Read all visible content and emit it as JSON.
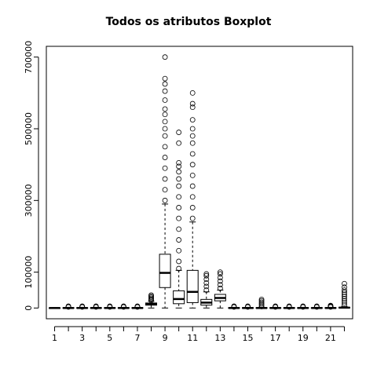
{
  "chart_data": {
    "type": "boxplot",
    "title": "Todos os atributos Boxplot",
    "xlabel": "",
    "ylabel": "",
    "ylim": [
      -30000,
      730000
    ],
    "y_ticks": [
      0,
      100000,
      300000,
      500000,
      700000
    ],
    "y_tick_labels": [
      "0",
      "100000",
      "300000",
      "500000",
      "700000"
    ],
    "x_tick_labels": [
      "1",
      "3",
      "5",
      "7",
      "9",
      "11",
      "13",
      "15",
      "17",
      "19",
      "21"
    ],
    "x_tick_positions": [
      1,
      3,
      5,
      7,
      9,
      11,
      13,
      15,
      17,
      19,
      21
    ],
    "grid": false,
    "categories": [
      "1",
      "2",
      "3",
      "4",
      "5",
      "6",
      "7",
      "8",
      "9",
      "10",
      "11",
      "12",
      "13",
      "14",
      "15",
      "16",
      "17",
      "18",
      "19",
      "20",
      "21",
      "22"
    ],
    "boxes": [
      {
        "id": 1,
        "min": 0,
        "q1": 0,
        "median": 0,
        "q3": 500,
        "max": 1000,
        "outliers": []
      },
      {
        "id": 2,
        "min": 0,
        "q1": 0,
        "median": 0,
        "q3": 1000,
        "max": 2000,
        "outliers": [
          3000,
          4000,
          5000
        ]
      },
      {
        "id": 3,
        "min": 0,
        "q1": 0,
        "median": 0,
        "q3": 1000,
        "max": 2000,
        "outliers": [
          3000,
          4000,
          5000
        ]
      },
      {
        "id": 4,
        "min": 0,
        "q1": 0,
        "median": 0,
        "q3": 1000,
        "max": 2000,
        "outliers": [
          3000,
          4000,
          5000
        ]
      },
      {
        "id": 5,
        "min": 0,
        "q1": 0,
        "median": 0,
        "q3": 1000,
        "max": 2000,
        "outliers": [
          3000,
          4000,
          5000
        ]
      },
      {
        "id": 6,
        "min": 0,
        "q1": 0,
        "median": 0,
        "q3": 1000,
        "max": 2000,
        "outliers": [
          3000,
          4000,
          5000
        ]
      },
      {
        "id": 7,
        "min": 0,
        "q1": 0,
        "median": 0,
        "q3": 1000,
        "max": 2000,
        "outliers": [
          3000,
          4000,
          5000
        ]
      },
      {
        "id": 8,
        "min": 0,
        "q1": 8000,
        "median": 11000,
        "q3": 14000,
        "max": 19000,
        "outliers": [
          21000,
          24000,
          27000,
          30000,
          33000,
          36000
        ]
      },
      {
        "id": 9,
        "min": 0,
        "q1": 57000,
        "median": 98000,
        "q3": 150000,
        "max": 290000,
        "outliers": [
          300000,
          330000,
          360000,
          390000,
          420000,
          450000,
          480000,
          500000,
          520000,
          540000,
          555000,
          580000,
          605000,
          625000,
          640000,
          700000
        ]
      },
      {
        "id": 10,
        "min": 0,
        "q1": 12000,
        "median": 25000,
        "q3": 48000,
        "max": 105000,
        "outliers": [
          110000,
          130000,
          160000,
          190000,
          220000,
          250000,
          280000,
          310000,
          340000,
          360000,
          380000,
          395000,
          405000,
          460000,
          490000
        ]
      },
      {
        "id": 11,
        "min": 0,
        "q1": 15000,
        "median": 45000,
        "q3": 105000,
        "max": 240000,
        "outliers": [
          250000,
          280000,
          310000,
          340000,
          370000,
          400000,
          430000,
          460000,
          480000,
          500000,
          525000,
          560000,
          570000,
          600000
        ]
      },
      {
        "id": 12,
        "min": 0,
        "q1": 8000,
        "median": 15000,
        "q3": 24000,
        "max": 45000,
        "outliers": [
          50000,
          60000,
          70000,
          80000,
          90000,
          95000
        ]
      },
      {
        "id": 13,
        "min": 0,
        "q1": 20000,
        "median": 28000,
        "q3": 38000,
        "max": 50000,
        "outliers": [
          55000,
          65000,
          75000,
          85000,
          95000,
          100000
        ]
      },
      {
        "id": 14,
        "min": 0,
        "q1": 0,
        "median": 0,
        "q3": 1000,
        "max": 2000,
        "outliers": [
          3000,
          4000,
          5000
        ]
      },
      {
        "id": 15,
        "min": 0,
        "q1": 0,
        "median": 0,
        "q3": 1000,
        "max": 2000,
        "outliers": [
          3000,
          4000,
          5000
        ]
      },
      {
        "id": 16,
        "min": 0,
        "q1": 0,
        "median": 0,
        "q3": 1000,
        "max": 2000,
        "outliers": [
          4000,
          8000,
          12000,
          16000,
          20000,
          24000
        ]
      },
      {
        "id": 17,
        "min": 0,
        "q1": 0,
        "median": 0,
        "q3": 1000,
        "max": 2000,
        "outliers": [
          3000,
          4000,
          5000
        ]
      },
      {
        "id": 18,
        "min": 0,
        "q1": 0,
        "median": 0,
        "q3": 1000,
        "max": 2000,
        "outliers": [
          3000,
          4000,
          5000
        ]
      },
      {
        "id": 19,
        "min": 0,
        "q1": 0,
        "median": 0,
        "q3": 1000,
        "max": 2000,
        "outliers": [
          3000,
          4000,
          5000
        ]
      },
      {
        "id": 20,
        "min": 0,
        "q1": 0,
        "median": 0,
        "q3": 1000,
        "max": 2000,
        "outliers": [
          3000,
          4000,
          5000
        ]
      },
      {
        "id": 21,
        "min": 0,
        "q1": 0,
        "median": 0,
        "q3": 1000,
        "max": 2000,
        "outliers": [
          3000,
          4000,
          5000,
          6000,
          7000
        ]
      },
      {
        "id": 22,
        "min": 0,
        "q1": 0,
        "median": 1000,
        "q3": 2000,
        "max": 4000,
        "outliers": [
          8000,
          14000,
          20000,
          26000,
          32000,
          38000,
          44000,
          50000,
          58000,
          68000
        ]
      }
    ]
  }
}
